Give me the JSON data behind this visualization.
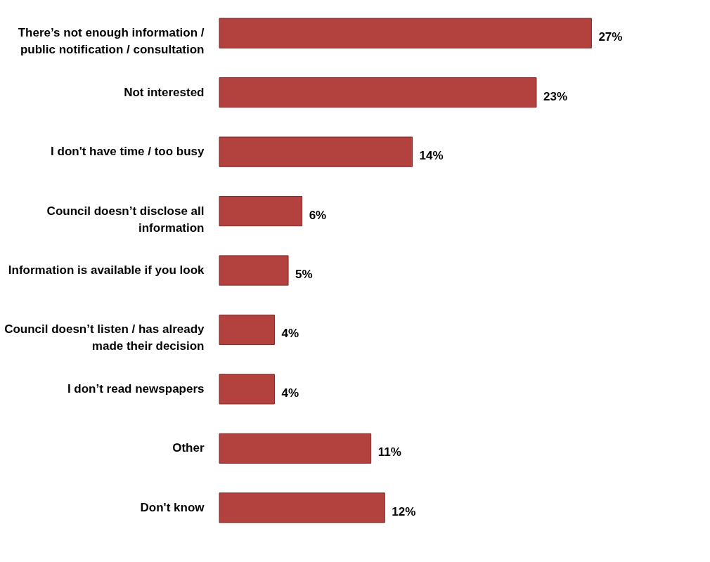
{
  "chart_data": {
    "type": "bar",
    "orientation": "horizontal",
    "categories": [
      "There’s not enough information / public notification / consultation",
      "Not interested",
      "I don't have time / too busy",
      "Council doesn’t disclose all information",
      "Information is available if you look",
      "Council doesn’t listen / has already made their decision",
      "I don’t read newspapers",
      "Other",
      "Don't know"
    ],
    "values": [
      27,
      23,
      14,
      6,
      5,
      4,
      4,
      11,
      12
    ],
    "value_labels": [
      "27%",
      "23%",
      "14%",
      "6%",
      "5%",
      "4%",
      "4%",
      "11%",
      "12%"
    ],
    "color": "#b3423f"
  }
}
